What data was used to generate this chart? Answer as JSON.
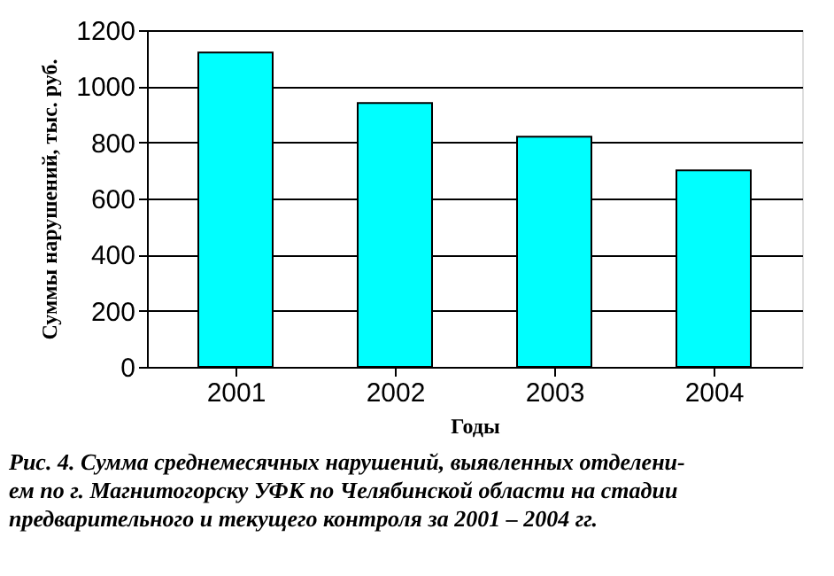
{
  "chart_data": {
    "type": "bar",
    "categories": [
      "2001",
      "2002",
      "2003",
      "2004"
    ],
    "values": [
      1120,
      940,
      820,
      700
    ],
    "color": "#00ffff",
    "xlabel": "Годы",
    "ylabel": "Суммы нарушений, тыс. руб.",
    "ylim": [
      0,
      1200
    ],
    "yticks": [
      0,
      200,
      400,
      600,
      800,
      1000,
      1200
    ],
    "grid": "y",
    "annotations": [
      "Рис. 4. Сумма среднемесячных нарушений, выявленных отделени-\nем по г. Магнитогорску УФК по Челябинской области на стадии\nпредварительного и текущего контроля за 2001 – 2004 гг."
    ]
  }
}
